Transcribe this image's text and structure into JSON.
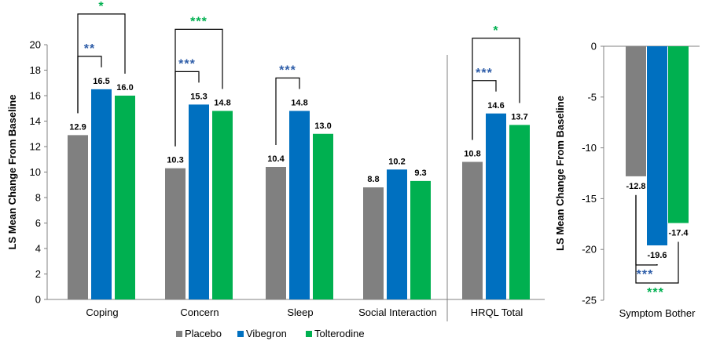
{
  "colors": {
    "placebo": "#808080",
    "vibegron": "#0070C0",
    "tolterodine": "#00B050",
    "sig_blue": "#2E5DA8",
    "sig_green": "#00B050"
  },
  "legend": [
    {
      "name": "Placebo",
      "color": "#808080"
    },
    {
      "name": "Vibegron",
      "color": "#0070C0"
    },
    {
      "name": "Tolterodine",
      "color": "#00B050"
    }
  ],
  "chart_data": [
    {
      "type": "bar",
      "ylabel": "LS Mean Change From Baseline",
      "ylim": [
        0,
        20
      ],
      "yticks": [
        0,
        2,
        4,
        6,
        8,
        10,
        12,
        14,
        16,
        18,
        20
      ],
      "categories": [
        "Coping",
        "Concern",
        "Sleep",
        "Social Interaction",
        "HRQL Total"
      ],
      "series": [
        {
          "name": "Placebo",
          "values": [
            12.9,
            10.3,
            10.4,
            8.8,
            10.8
          ]
        },
        {
          "name": "Vibegron",
          "values": [
            16.5,
            15.3,
            14.8,
            10.2,
            14.6
          ]
        },
        {
          "name": "Tolterodine",
          "values": [
            16.0,
            14.8,
            13.0,
            9.3,
            13.7
          ]
        }
      ],
      "data_labels": [
        [
          "12.9",
          "10.3",
          "10.4",
          "8.8",
          "10.8"
        ],
        [
          "16.5",
          "15.3",
          "14.8",
          "10.2",
          "14.6"
        ],
        [
          "16.0",
          "14.8",
          "13.0",
          "9.3",
          "13.7"
        ]
      ],
      "significance": [
        {
          "category": "Coping",
          "comparison": "Vibegron vs Placebo",
          "label": "**",
          "color": "blue"
        },
        {
          "category": "Coping",
          "comparison": "Tolterodine vs Placebo",
          "label": "*",
          "color": "green"
        },
        {
          "category": "Concern",
          "comparison": "Vibegron vs Placebo",
          "label": "***",
          "color": "blue"
        },
        {
          "category": "Concern",
          "comparison": "Tolterodine vs Placebo",
          "label": "***",
          "color": "green"
        },
        {
          "category": "Sleep",
          "comparison": "Vibegron vs Placebo",
          "label": "***",
          "color": "blue"
        },
        {
          "category": "HRQL Total",
          "comparison": "Vibegron vs Placebo",
          "label": "***",
          "color": "blue"
        },
        {
          "category": "HRQL Total",
          "comparison": "Tolterodine vs Placebo",
          "label": "*",
          "color": "green"
        }
      ],
      "separator_before": "HRQL Total"
    },
    {
      "type": "bar",
      "ylabel": "LS Mean Change From Baseline",
      "ylim": [
        -25,
        0
      ],
      "yticks": [
        0,
        -5,
        -10,
        -15,
        -20,
        -25
      ],
      "categories": [
        "Symptom Bother"
      ],
      "series": [
        {
          "name": "Placebo",
          "values": [
            -12.8
          ]
        },
        {
          "name": "Vibegron",
          "values": [
            -19.6
          ]
        },
        {
          "name": "Tolterodine",
          "values": [
            -17.4
          ]
        }
      ],
      "data_labels": [
        [
          "-12.8"
        ],
        [
          "-19.6"
        ],
        [
          "-17.4"
        ]
      ],
      "significance": [
        {
          "category": "Symptom Bother",
          "comparison": "Vibegron vs Placebo",
          "label": "***",
          "color": "blue"
        },
        {
          "category": "Symptom Bother",
          "comparison": "Tolterodine vs Placebo",
          "label": "***",
          "color": "green"
        }
      ]
    }
  ]
}
